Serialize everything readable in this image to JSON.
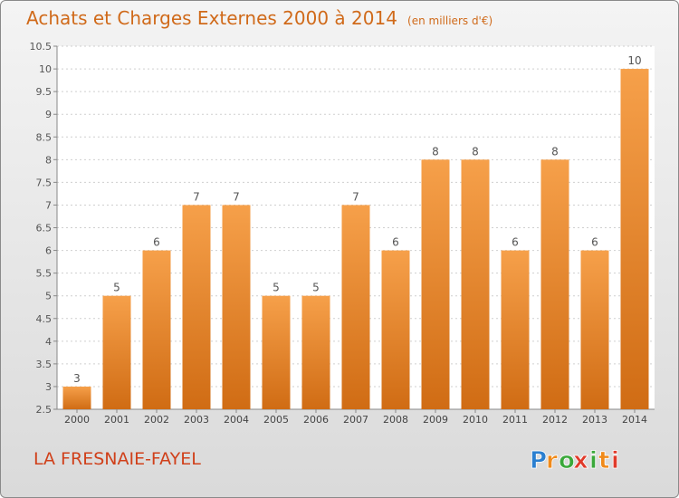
{
  "chart_data": {
    "type": "bar",
    "title": "Achats et Charges Externes 2000 à 2014",
    "subtitle": "(en milliers d'€)",
    "categories": [
      "2000",
      "2001",
      "2002",
      "2003",
      "2004",
      "2005",
      "2006",
      "2007",
      "2008",
      "2009",
      "2010",
      "2011",
      "2012",
      "2013",
      "2014"
    ],
    "values": [
      3,
      5,
      6,
      7,
      7,
      5,
      5,
      7,
      6,
      8,
      8,
      6,
      8,
      6,
      10
    ],
    "value_labels": [
      "3",
      "5",
      "6",
      "7",
      "7",
      "5",
      "5",
      "7",
      "6",
      "8",
      "8",
      "6",
      "8",
      "6",
      "10"
    ],
    "ylim": [
      2.5,
      10.5
    ],
    "yticks": [
      2.5,
      3,
      3.5,
      4,
      4.5,
      5,
      5.5,
      6,
      6.5,
      7,
      7.5,
      8,
      8.5,
      9,
      9.5,
      10,
      10.5
    ],
    "ytick_labels": [
      "2.5",
      "3",
      "3.5",
      "4",
      "4.5",
      "5",
      "5.5",
      "6",
      "6.5",
      "7",
      "7.5",
      "8",
      "8.5",
      "9",
      "9.5",
      "10",
      "10.5"
    ],
    "grid": true,
    "legend": false,
    "bar_color": "#f0953a"
  },
  "footer": {
    "town": "LA FRESNAIE-FAYEL",
    "logo_letters": [
      "P",
      "r",
      "o",
      "x",
      "i",
      "t",
      "i"
    ]
  },
  "colors": {
    "title": "#d06a1a",
    "town": "#d0401a",
    "logo": [
      "#2a7fd0",
      "#f08a1a",
      "#3aa83a",
      "#e03a2a",
      "#3aa83a",
      "#f08a1a",
      "#e03a2a"
    ]
  }
}
